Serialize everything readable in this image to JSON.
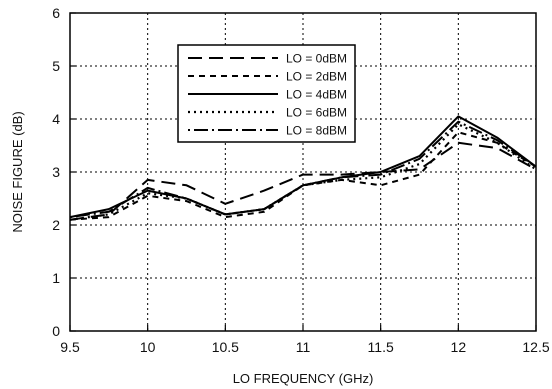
{
  "chart_data": {
    "type": "line",
    "title": "",
    "xlabel": "LO FREQUENCY (GHz)",
    "ylabel": "NOISE FIGURE (dB)",
    "xlim": [
      9.5,
      12.5
    ],
    "ylim": [
      0,
      6
    ],
    "xticks": [
      "9.5",
      "10",
      "10.5",
      "11",
      "11.5",
      "12",
      "12.5"
    ],
    "yticks": [
      "0",
      "1",
      "2",
      "3",
      "4",
      "5",
      "6"
    ],
    "grid": "dotted",
    "legend_position": "top-center",
    "x": [
      9.5,
      9.75,
      10,
      10.25,
      10.5,
      10.75,
      11,
      11.25,
      11.5,
      11.75,
      12,
      12.25,
      12.5
    ],
    "series": [
      {
        "name": "LO = 0dBM",
        "style": "long-dash",
        "values": [
          2.1,
          2.2,
          2.85,
          2.75,
          2.4,
          2.65,
          2.95,
          2.95,
          3.0,
          3.05,
          3.55,
          3.45,
          3.05
        ]
      },
      {
        "name": "LO = 2dBM",
        "style": "short-dash",
        "values": [
          2.1,
          2.15,
          2.55,
          2.45,
          2.15,
          2.25,
          2.75,
          2.85,
          2.75,
          2.95,
          3.75,
          3.55,
          3.1
        ]
      },
      {
        "name": "LO = 4dBM",
        "style": "solid",
        "values": [
          2.15,
          2.3,
          2.65,
          2.5,
          2.2,
          2.3,
          2.75,
          2.9,
          3.0,
          3.3,
          4.05,
          3.65,
          3.1
        ]
      },
      {
        "name": "LO = 6dBM",
        "style": "dotted",
        "values": [
          2.1,
          2.2,
          2.6,
          2.5,
          2.2,
          2.3,
          2.75,
          2.85,
          2.9,
          3.15,
          3.9,
          3.55,
          3.05
        ]
      },
      {
        "name": "LO = 8dBM",
        "style": "dot-dash",
        "values": [
          2.15,
          2.25,
          2.7,
          2.5,
          2.2,
          2.3,
          2.75,
          2.9,
          2.95,
          3.25,
          3.95,
          3.6,
          3.1
        ]
      }
    ]
  }
}
